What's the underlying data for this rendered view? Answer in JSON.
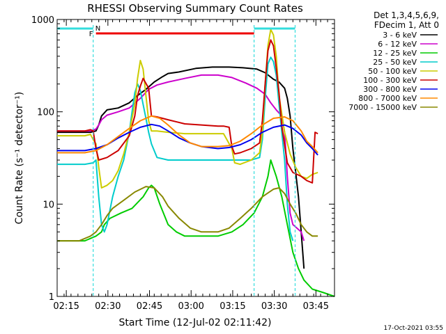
{
  "chart_data": {
    "type": "line",
    "title": "RHESSI Observing Summary Count Rates",
    "xlabel": "Start Time (12-Jul-02 02:11:42)",
    "ylabel": "Count Rate (s⁻¹ detector⁻¹)",
    "yscale": "log",
    "ylim": [
      1,
      1000
    ],
    "xlim_minutes": [
      0,
      100
    ],
    "x_ticks": [
      {
        "m": 3.3,
        "label": "02:15"
      },
      {
        "m": 18.3,
        "label": "02:30"
      },
      {
        "m": 33.3,
        "label": "02:45"
      },
      {
        "m": 48.3,
        "label": "03:00"
      },
      {
        "m": 63.3,
        "label": "03:15"
      },
      {
        "m": 78.3,
        "label": "03:30"
      },
      {
        "m": 93.3,
        "label": "03:45"
      }
    ],
    "y_ticks": [
      {
        "v": 1,
        "label": "1"
      },
      {
        "v": 10,
        "label": "10"
      },
      {
        "v": 100,
        "label": "100"
      },
      {
        "v": 1000,
        "label": "1000"
      }
    ],
    "legend_header": [
      "Det 1,3,4,5,6,9,",
      "FDecim 1, Att 0"
    ],
    "series": [
      {
        "name": "3 - 6 keV",
        "color": "#000000",
        "points": [
          [
            0,
            60
          ],
          [
            12,
            60
          ],
          [
            14,
            62
          ],
          [
            15,
            72
          ],
          [
            16,
            90
          ],
          [
            18,
            105
          ],
          [
            22,
            110
          ],
          [
            26,
            125
          ],
          [
            29,
            150
          ],
          [
            32,
            175
          ],
          [
            35,
            210
          ],
          [
            38,
            240
          ],
          [
            40,
            260
          ],
          [
            44,
            270
          ],
          [
            50,
            295
          ],
          [
            56,
            305
          ],
          [
            62,
            305
          ],
          [
            67,
            300
          ],
          [
            72,
            290
          ],
          [
            75,
            265
          ],
          [
            78,
            225
          ],
          [
            80,
            210
          ],
          [
            82,
            180
          ],
          [
            83,
            140
          ],
          [
            84,
            90
          ],
          [
            85,
            40
          ],
          [
            86,
            22
          ],
          [
            87,
            12
          ],
          [
            88,
            5
          ],
          [
            89,
            2
          ]
        ]
      },
      {
        "name": "6 - 12 keV",
        "color": "#cc00cc",
        "points": [
          [
            0,
            62
          ],
          [
            12,
            62
          ],
          [
            14,
            65
          ],
          [
            15,
            72
          ],
          [
            16,
            82
          ],
          [
            18,
            92
          ],
          [
            22,
            100
          ],
          [
            26,
            110
          ],
          [
            30,
            140
          ],
          [
            33,
            175
          ],
          [
            36,
            195
          ],
          [
            40,
            210
          ],
          [
            46,
            230
          ],
          [
            52,
            250
          ],
          [
            58,
            250
          ],
          [
            63,
            235
          ],
          [
            68,
            205
          ],
          [
            72,
            180
          ],
          [
            75,
            155
          ],
          [
            77,
            125
          ],
          [
            79,
            105
          ],
          [
            81,
            90
          ],
          [
            82,
            60
          ],
          [
            83,
            20
          ],
          [
            84,
            8
          ],
          [
            85,
            6
          ],
          [
            88,
            5
          ],
          [
            89,
            4
          ]
        ]
      },
      {
        "name": "12 - 25 keV",
        "color": "#00cc00",
        "points": [
          [
            0,
            4
          ],
          [
            10,
            4
          ],
          [
            14,
            4.5
          ],
          [
            16,
            5
          ],
          [
            17,
            6
          ],
          [
            19,
            7
          ],
          [
            23,
            8
          ],
          [
            27,
            9
          ],
          [
            31,
            12
          ],
          [
            33,
            15
          ],
          [
            34,
            16
          ],
          [
            35,
            15
          ],
          [
            37,
            10
          ],
          [
            40,
            6
          ],
          [
            43,
            5
          ],
          [
            46,
            4.5
          ],
          [
            52,
            4.5
          ],
          [
            58,
            4.5
          ],
          [
            63,
            5
          ],
          [
            67,
            6
          ],
          [
            71,
            8
          ],
          [
            74,
            12
          ],
          [
            76,
            20
          ],
          [
            77,
            30
          ],
          [
            79,
            20
          ],
          [
            81,
            12
          ],
          [
            83,
            6
          ],
          [
            85,
            3
          ],
          [
            87,
            2
          ],
          [
            89,
            1.5
          ],
          [
            92,
            1.2
          ],
          [
            96,
            1.1
          ],
          [
            100,
            1
          ]
        ]
      },
      {
        "name": "25 - 50 keV",
        "color": "#00cccc",
        "points": [
          [
            0,
            27
          ],
          [
            10,
            27
          ],
          [
            13,
            28
          ],
          [
            14,
            30
          ],
          [
            15,
            12
          ],
          [
            16,
            6
          ],
          [
            17,
            5
          ],
          [
            18,
            6
          ],
          [
            20,
            12
          ],
          [
            22,
            20
          ],
          [
            24,
            30
          ],
          [
            26,
            60
          ],
          [
            27,
            100
          ],
          [
            28,
            160
          ],
          [
            29,
            200
          ],
          [
            30,
            170
          ],
          [
            31,
            120
          ],
          [
            32,
            85
          ],
          [
            33,
            60
          ],
          [
            34,
            45
          ],
          [
            36,
            32
          ],
          [
            40,
            30
          ],
          [
            46,
            30
          ],
          [
            52,
            30
          ],
          [
            58,
            30
          ],
          [
            60,
            30
          ],
          [
            66,
            30
          ],
          [
            70,
            30
          ],
          [
            73,
            32
          ],
          [
            74,
            50
          ],
          [
            75,
            140
          ],
          [
            76,
            330
          ],
          [
            77,
            390
          ],
          [
            78,
            350
          ],
          [
            79,
            250
          ],
          [
            80,
            120
          ],
          [
            81,
            60
          ],
          [
            82,
            30
          ],
          [
            83,
            10
          ],
          [
            84,
            5
          ],
          [
            85,
            4
          ]
        ]
      },
      {
        "name": "50 - 100 keV",
        "color": "#cccc00",
        "points": [
          [
            0,
            55
          ],
          [
            10,
            55
          ],
          [
            12,
            57
          ],
          [
            13,
            50
          ],
          [
            14,
            45
          ],
          [
            15,
            25
          ],
          [
            16,
            15
          ],
          [
            18,
            16
          ],
          [
            20,
            18
          ],
          [
            22,
            23
          ],
          [
            24,
            35
          ],
          [
            26,
            60
          ],
          [
            28,
            120
          ],
          [
            29,
            230
          ],
          [
            30,
            360
          ],
          [
            31,
            290
          ],
          [
            32,
            150
          ],
          [
            33,
            80
          ],
          [
            34,
            62
          ],
          [
            36,
            62
          ],
          [
            40,
            60
          ],
          [
            46,
            58
          ],
          [
            52,
            58
          ],
          [
            58,
            58
          ],
          [
            60,
            58
          ],
          [
            63,
            40
          ],
          [
            64,
            28
          ],
          [
            66,
            27
          ],
          [
            70,
            30
          ],
          [
            73,
            36
          ],
          [
            74,
            60
          ],
          [
            75,
            200
          ],
          [
            76,
            520
          ],
          [
            77,
            780
          ],
          [
            78,
            680
          ],
          [
            79,
            400
          ],
          [
            80,
            150
          ],
          [
            82,
            60
          ],
          [
            84,
            35
          ],
          [
            86,
            25
          ],
          [
            88,
            20
          ],
          [
            90,
            19
          ],
          [
            92,
            21
          ],
          [
            94,
            22
          ]
        ]
      },
      {
        "name": "100 - 300 keV",
        "color": "#cc0000",
        "points": [
          [
            0,
            62
          ],
          [
            10,
            62
          ],
          [
            12,
            64
          ],
          [
            13,
            62
          ],
          [
            14,
            40
          ],
          [
            15,
            30
          ],
          [
            18,
            32
          ],
          [
            22,
            38
          ],
          [
            26,
            55
          ],
          [
            28,
            90
          ],
          [
            29,
            150
          ],
          [
            30,
            190
          ],
          [
            31,
            230
          ],
          [
            33,
            180
          ],
          [
            34,
            90
          ],
          [
            36,
            88
          ],
          [
            40,
            82
          ],
          [
            46,
            74
          ],
          [
            52,
            72
          ],
          [
            58,
            70
          ],
          [
            60,
            70
          ],
          [
            62,
            68
          ],
          [
            63,
            42
          ],
          [
            64,
            35
          ],
          [
            66,
            36
          ],
          [
            70,
            40
          ],
          [
            73,
            46
          ],
          [
            74,
            80
          ],
          [
            75,
            200
          ],
          [
            76,
            460
          ],
          [
            77,
            600
          ],
          [
            78,
            520
          ],
          [
            79,
            300
          ],
          [
            80,
            160
          ],
          [
            81,
            70
          ],
          [
            83,
            28
          ],
          [
            85,
            22
          ],
          [
            88,
            20
          ],
          [
            90,
            18
          ],
          [
            92,
            17
          ],
          [
            93,
            60
          ],
          [
            94,
            58
          ]
        ]
      },
      {
        "name": "300 - 800 keV",
        "color": "#0000ee",
        "points": [
          [
            0,
            38
          ],
          [
            10,
            38
          ],
          [
            14,
            40
          ],
          [
            18,
            44
          ],
          [
            22,
            52
          ],
          [
            26,
            60
          ],
          [
            30,
            68
          ],
          [
            34,
            73
          ],
          [
            37,
            70
          ],
          [
            40,
            62
          ],
          [
            44,
            52
          ],
          [
            48,
            46
          ],
          [
            52,
            42
          ],
          [
            58,
            40
          ],
          [
            62,
            41
          ],
          [
            66,
            44
          ],
          [
            70,
            50
          ],
          [
            74,
            60
          ],
          [
            78,
            68
          ],
          [
            82,
            72
          ],
          [
            85,
            66
          ],
          [
            88,
            56
          ],
          [
            90,
            46
          ],
          [
            92,
            40
          ],
          [
            94,
            34
          ]
        ]
      },
      {
        "name": "800 - 7000 keV",
        "color": "#ff8800",
        "points": [
          [
            0,
            36
          ],
          [
            10,
            36
          ],
          [
            14,
            38
          ],
          [
            18,
            44
          ],
          [
            22,
            54
          ],
          [
            26,
            66
          ],
          [
            30,
            80
          ],
          [
            34,
            90
          ],
          [
            37,
            85
          ],
          [
            40,
            72
          ],
          [
            44,
            56
          ],
          [
            48,
            46
          ],
          [
            52,
            42
          ],
          [
            58,
            42
          ],
          [
            62,
            43
          ],
          [
            66,
            48
          ],
          [
            70,
            58
          ],
          [
            74,
            72
          ],
          [
            78,
            85
          ],
          [
            82,
            88
          ],
          [
            85,
            80
          ],
          [
            88,
            62
          ],
          [
            90,
            48
          ],
          [
            92,
            42
          ],
          [
            94,
            36
          ]
        ]
      },
      {
        "name": "7000 - 15000 keV",
        "color": "#888800",
        "points": [
          [
            0,
            4
          ],
          [
            8,
            4
          ],
          [
            12,
            4.5
          ],
          [
            14,
            5
          ],
          [
            16,
            6
          ],
          [
            18,
            7.5
          ],
          [
            20,
            9
          ],
          [
            24,
            11
          ],
          [
            28,
            13.5
          ],
          [
            32,
            15.5
          ],
          [
            35,
            15
          ],
          [
            38,
            12
          ],
          [
            40,
            9.5
          ],
          [
            44,
            7
          ],
          [
            48,
            5.5
          ],
          [
            52,
            5
          ],
          [
            58,
            5
          ],
          [
            62,
            5.5
          ],
          [
            66,
            7
          ],
          [
            70,
            9
          ],
          [
            74,
            12
          ],
          [
            78,
            14.5
          ],
          [
            80,
            15
          ],
          [
            82,
            13
          ],
          [
            84,
            10
          ],
          [
            86,
            8
          ],
          [
            88,
            6
          ],
          [
            90,
            5
          ],
          [
            92,
            4.5
          ],
          [
            94,
            4.5
          ]
        ]
      }
    ],
    "annotations": {
      "N_label": "N",
      "F_label": "F",
      "night_intervals_minutes": [
        [
          0,
          13
        ],
        [
          71,
          85.8
        ]
      ],
      "flare_interval_minutes": [
        14,
        71
      ],
      "vertical_markers_minutes": [
        13,
        71,
        85.8
      ]
    }
  },
  "footer_date": "17-Oct-2021 03:55"
}
